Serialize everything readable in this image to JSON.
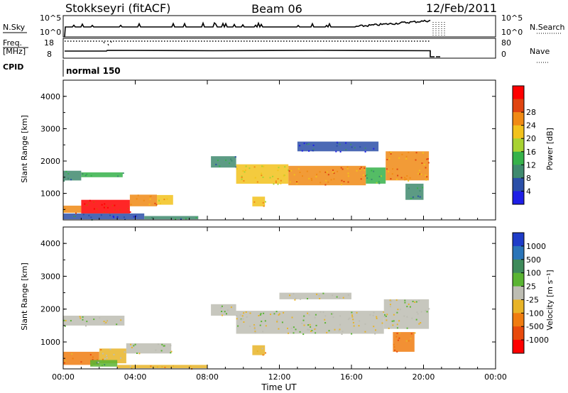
{
  "header": {
    "station": "Stokkseyri (fitACF)",
    "beam": "Beam 06",
    "date": "12/Feb/2011"
  },
  "nsky_panel": {
    "left_label": "N.Sky",
    "right_label": "N.Search",
    "left_ticks": [
      "10^5",
      "10^0"
    ],
    "right_ticks": [
      "10^5",
      "10^0"
    ]
  },
  "freq_panel": {
    "left_label_line1": "Freq.",
    "left_label_line2": "[MHz]",
    "right_label": "Nave",
    "left_ticks": [
      "18",
      "8"
    ],
    "right_ticks": [
      "80",
      "0"
    ]
  },
  "cpid": {
    "label": "CPID",
    "value": "normal 150"
  },
  "colors": {
    "power_scale": [
      "#1e1ee6",
      "#2b4fa8",
      "#3f8a6e",
      "#36b24a",
      "#a8d232",
      "#f2c21c",
      "#f08a14",
      "#e04410",
      "#ff0000"
    ],
    "velocity_scale": [
      "#1e3cc8",
      "#2a74b8",
      "#3e8a5a",
      "#5ab432",
      "#bdbdb3",
      "#e8b428",
      "#f07c10",
      "#e84a0c",
      "#ff0000"
    ]
  },
  "chart_data": [
    {
      "type": "heatmap",
      "title": "",
      "xlabel": "",
      "ylabel": "Slant Range [km]",
      "x_unit": "hours UT",
      "xlim": [
        0,
        24
      ],
      "ylim": [
        180,
        4500
      ],
      "x_ticks": [
        "00:00",
        "04:00",
        "08:00",
        "12:00",
        "16:00",
        "20:00",
        "00:00"
      ],
      "y_ticks": [
        "1000",
        "2000",
        "3000",
        "4000"
      ],
      "colorbar": {
        "label": "Power [dB]",
        "min": 0,
        "max": 32,
        "tick_labels": [
          "4",
          "8",
          "12",
          "16",
          "20",
          "24",
          "28"
        ]
      },
      "regions": [
        {
          "t0": 0.0,
          "t1": 4.5,
          "r0": 200,
          "r1": 380,
          "value": 6
        },
        {
          "t0": 0.0,
          "t1": 1.0,
          "r0": 400,
          "r1": 620,
          "value": 24
        },
        {
          "t0": 1.0,
          "t1": 3.7,
          "r0": 380,
          "r1": 800,
          "value": 30
        },
        {
          "t0": 3.7,
          "t1": 5.2,
          "r0": 600,
          "r1": 960,
          "value": 22
        },
        {
          "t0": 5.2,
          "t1": 6.1,
          "r0": 650,
          "r1": 950,
          "value": 18
        },
        {
          "t0": 0.0,
          "t1": 1.0,
          "r0": 1400,
          "r1": 1700,
          "value": 10
        },
        {
          "t0": 1.0,
          "t1": 3.3,
          "r0": 1500,
          "r1": 1650,
          "value": 13
        },
        {
          "t0": 4.5,
          "t1": 7.5,
          "r0": 200,
          "r1": 300,
          "value": 8
        },
        {
          "t0": 8.2,
          "t1": 9.6,
          "r0": 1800,
          "r1": 2150,
          "value": 10
        },
        {
          "t0": 9.6,
          "t1": 12.5,
          "r0": 1300,
          "r1": 1900,
          "value": 18
        },
        {
          "t0": 12.5,
          "t1": 16.8,
          "r0": 1250,
          "r1": 1850,
          "value": 22
        },
        {
          "t0": 16.8,
          "t1": 17.9,
          "r0": 1300,
          "r1": 1800,
          "value": 14
        },
        {
          "t0": 17.9,
          "t1": 20.3,
          "r0": 1400,
          "r1": 2300,
          "value": 23
        },
        {
          "t0": 10.5,
          "t1": 11.2,
          "r0": 600,
          "r1": 900,
          "value": 19
        },
        {
          "t0": 19.0,
          "t1": 20.0,
          "r0": 800,
          "r1": 1300,
          "value": 9
        },
        {
          "t0": 13.0,
          "t1": 17.5,
          "r0": 2300,
          "r1": 2600,
          "value": 7
        }
      ]
    },
    {
      "type": "heatmap",
      "title": "",
      "xlabel": "Time UT",
      "ylabel": "Slant Range [km]",
      "x_unit": "hours UT",
      "xlim": [
        0,
        24
      ],
      "ylim": [
        180,
        4500
      ],
      "x_ticks": [
        "00:00",
        "04:00",
        "08:00",
        "12:00",
        "16:00",
        "20:00",
        "00:00"
      ],
      "y_ticks": [
        "1000",
        "2000",
        "3000",
        "4000"
      ],
      "colorbar": {
        "label": "Velocity [m s⁻¹]",
        "tick_labels": [
          "1000",
          "500",
          "100",
          "25",
          "-25",
          "-100",
          "-500",
          "-1000"
        ]
      },
      "regions": [
        {
          "t0": 0.0,
          "t1": 2.0,
          "r0": 300,
          "r1": 700,
          "value": -250
        },
        {
          "t0": 2.0,
          "t1": 3.5,
          "r0": 350,
          "r1": 800,
          "value": -80
        },
        {
          "t0": 3.5,
          "t1": 6.0,
          "r0": 650,
          "r1": 960,
          "value": 0
        },
        {
          "t0": 0.0,
          "t1": 3.4,
          "r0": 1500,
          "r1": 1800,
          "value": 0
        },
        {
          "t0": 1.5,
          "t1": 3.0,
          "r0": 250,
          "r1": 450,
          "value": 60
        },
        {
          "t0": 3.0,
          "t1": 8.0,
          "r0": 200,
          "r1": 300,
          "value": -60
        },
        {
          "t0": 8.2,
          "t1": 9.6,
          "r0": 1800,
          "r1": 2150,
          "value": 0
        },
        {
          "t0": 9.6,
          "t1": 17.8,
          "r0": 1250,
          "r1": 1950,
          "value": 0
        },
        {
          "t0": 17.8,
          "t1": 20.3,
          "r0": 1400,
          "r1": 2300,
          "value": 0
        },
        {
          "t0": 18.3,
          "t1": 19.5,
          "r0": 700,
          "r1": 1300,
          "value": -300
        },
        {
          "t0": 10.5,
          "t1": 11.2,
          "r0": 600,
          "r1": 900,
          "value": -30
        },
        {
          "t0": 12.0,
          "t1": 16.0,
          "r0": 2300,
          "r1": 2500,
          "value": 0
        }
      ]
    }
  ]
}
